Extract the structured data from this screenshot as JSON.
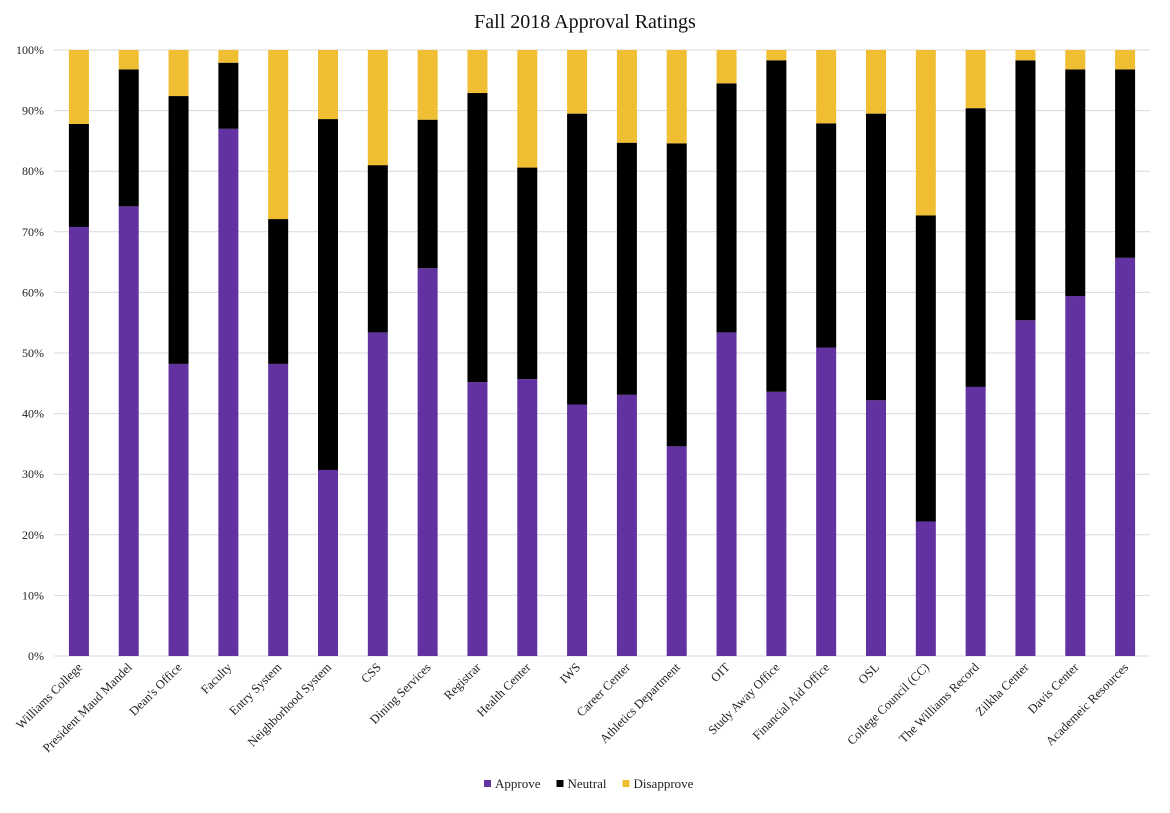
{
  "chart_data": {
    "type": "bar",
    "stacked": true,
    "normalized": true,
    "title": "Fall 2018 Approval Ratings",
    "xlabel": "",
    "ylabel": "",
    "ylim": [
      0,
      100
    ],
    "yticks": [
      "0%",
      "10%",
      "20%",
      "30%",
      "40%",
      "50%",
      "60%",
      "70%",
      "80%",
      "90%",
      "100%"
    ],
    "grid": true,
    "legend_position": "bottom",
    "categories": [
      "Williams College",
      "President Maud Mandel",
      "Dean's Office",
      "Faculty",
      "Entry System",
      "Neighborhood System",
      "CSS",
      "Dining Services",
      "Registrar",
      "Health Center",
      "IWS",
      "Career Center",
      "Athletics Department",
      "OIT",
      "Study Away Office",
      "Financial Aid Office",
      "OSL",
      "College Council (CC)",
      "The Williams Record",
      "Zilkha Center",
      "Davis Center",
      "Academeic Resources"
    ],
    "series": [
      {
        "name": "Approve",
        "color": "#6232a0",
        "values": [
          70.8,
          74.2,
          48.2,
          87.0,
          48.2,
          30.7,
          53.4,
          64.0,
          45.2,
          45.7,
          41.5,
          43.1,
          34.6,
          53.4,
          43.6,
          50.9,
          42.2,
          22.2,
          44.4,
          55.4,
          59.4,
          65.7
        ]
      },
      {
        "name": "Neutral",
        "color": "#000000",
        "values": [
          17.0,
          22.6,
          44.2,
          10.9,
          23.9,
          57.9,
          27.6,
          24.5,
          47.7,
          34.9,
          48.0,
          41.6,
          50.0,
          41.1,
          54.7,
          37.0,
          47.3,
          50.5,
          46.0,
          42.9,
          37.4,
          31.1
        ]
      },
      {
        "name": "Disapprove",
        "color": "#f0be32",
        "values": [
          12.2,
          3.2,
          7.6,
          2.1,
          27.9,
          11.4,
          19.0,
          11.5,
          7.1,
          19.4,
          10.5,
          15.3,
          15.4,
          5.5,
          1.7,
          12.1,
          10.5,
          27.3,
          9.6,
          1.7,
          3.2,
          3.2
        ]
      }
    ]
  }
}
